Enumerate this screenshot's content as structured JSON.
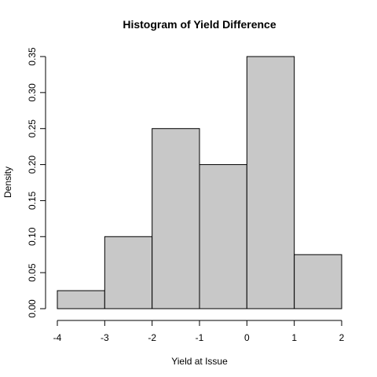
{
  "chart_data": {
    "type": "bar",
    "title": "Histogram of Yield Difference",
    "xlabel": "Yield at Issue",
    "ylabel": "Density",
    "bins": [
      {
        "start": -4,
        "end": -3,
        "density": 0.025
      },
      {
        "start": -3,
        "end": -2,
        "density": 0.1
      },
      {
        "start": -2,
        "end": -1,
        "density": 0.25
      },
      {
        "start": -1,
        "end": 0,
        "density": 0.2
      },
      {
        "start": 0,
        "end": 1,
        "density": 0.35
      },
      {
        "start": 1,
        "end": 2,
        "density": 0.075
      }
    ],
    "xlim": [
      -4,
      2
    ],
    "ylim": [
      0,
      0.35
    ],
    "x_ticks": [
      {
        "value": -4,
        "label": "-4"
      },
      {
        "value": -3,
        "label": "-3"
      },
      {
        "value": -2,
        "label": "-2"
      },
      {
        "value": -1,
        "label": "-1"
      },
      {
        "value": 0,
        "label": "0"
      },
      {
        "value": 1,
        "label": "1"
      },
      {
        "value": 2,
        "label": "2"
      }
    ],
    "y_ticks": [
      {
        "value": 0,
        "label": "0.00"
      },
      {
        "value": 0.05,
        "label": "0.05"
      },
      {
        "value": 0.1,
        "label": "0.10"
      },
      {
        "value": 0.15,
        "label": "0.15"
      },
      {
        "value": 0.2,
        "label": "0.20"
      },
      {
        "value": 0.25,
        "label": "0.25"
      },
      {
        "value": 0.3,
        "label": "0.30"
      },
      {
        "value": 0.35,
        "label": "0.35"
      }
    ],
    "grid": false,
    "legend": "none",
    "bar_color": "#c8c8c8",
    "edge_color": "#000000"
  }
}
